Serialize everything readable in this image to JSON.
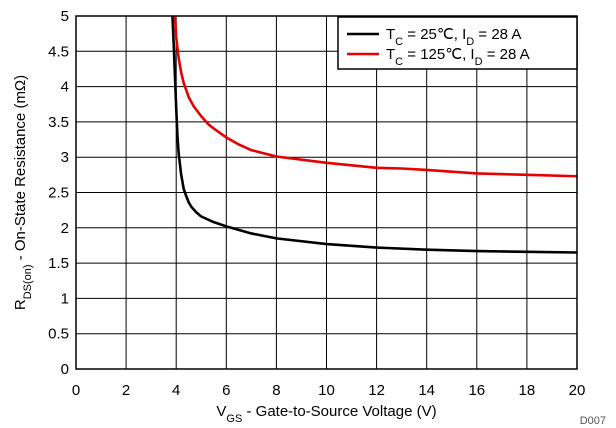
{
  "chart_data": {
    "type": "line",
    "xlabel": {
      "main": "V",
      "sub": "GS",
      "rest": " - Gate-to-Source Voltage (V)"
    },
    "ylabel": {
      "main": "R",
      "sub": "DS(on)",
      "rest": " - On-State Resistance (mΩ)"
    },
    "xlim": [
      0,
      20
    ],
    "ylim": [
      0,
      5
    ],
    "x_ticks": [
      "0",
      "2",
      "4",
      "6",
      "8",
      "10",
      "12",
      "14",
      "16",
      "18",
      "20"
    ],
    "y_ticks": [
      "0",
      "0.5",
      "1",
      "1.5",
      "2",
      "2.5",
      "3",
      "3.5",
      "4",
      "4.5",
      "5"
    ],
    "grid": true,
    "legend_position": "top-right",
    "series": [
      {
        "name": "T_C = 25℃, I_D = 28 A",
        "label_parts": [
          "T",
          "C",
          " = 25℃, I",
          "D",
          " = 28 A"
        ],
        "color": "#000000",
        "x": [
          3.85,
          3.9,
          3.95,
          4.0,
          4.05,
          4.1,
          4.2,
          4.3,
          4.4,
          4.5,
          4.6,
          4.8,
          5.0,
          5.5,
          6.0,
          7.0,
          8.0,
          10.0,
          12.0,
          14.0,
          16.0,
          18.0,
          20.0
        ],
        "y": [
          5.0,
          4.6,
          4.15,
          3.7,
          3.3,
          3.05,
          2.75,
          2.55,
          2.45,
          2.36,
          2.3,
          2.22,
          2.16,
          2.08,
          2.02,
          1.92,
          1.85,
          1.77,
          1.72,
          1.69,
          1.67,
          1.66,
          1.65
        ]
      },
      {
        "name": "T_C = 125℃, I_D = 28 A",
        "label_parts": [
          "T",
          "C",
          " = 125℃, I",
          "D",
          " = 28 A"
        ],
        "color": "#e60000",
        "x": [
          3.95,
          4.0,
          4.05,
          4.1,
          4.2,
          4.3,
          4.5,
          4.7,
          5.0,
          5.3,
          5.6,
          6.0,
          6.5,
          7.0,
          8.0,
          10.0,
          12.0,
          13.0,
          14.0,
          16.0,
          18.0,
          20.0
        ],
        "y": [
          5.0,
          4.7,
          4.55,
          4.4,
          4.2,
          4.05,
          3.85,
          3.72,
          3.58,
          3.46,
          3.38,
          3.28,
          3.18,
          3.1,
          3.01,
          2.92,
          2.85,
          2.84,
          2.82,
          2.77,
          2.75,
          2.73
        ]
      }
    ]
  },
  "corner_label": "D007"
}
